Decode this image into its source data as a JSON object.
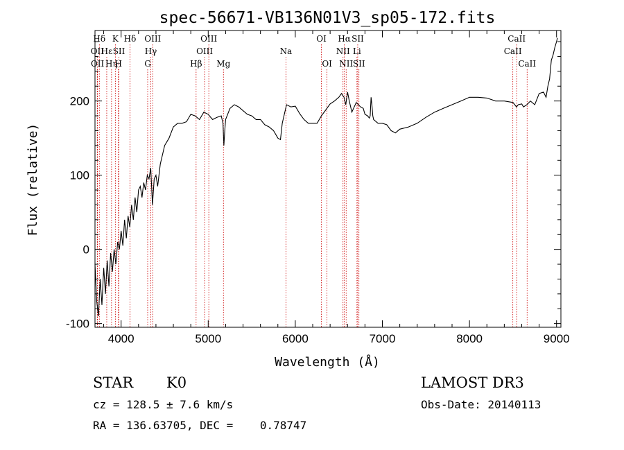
{
  "chart_data": {
    "type": "line",
    "title": "spec-56671-VB136N01V3_sp05-172.fits",
    "xlabel": "Wavelength (Å)",
    "ylabel": "Flux (relative)",
    "xlim": [
      3700,
      9050
    ],
    "ylim": [
      -105,
      295
    ],
    "xticks": [
      4000,
      5000,
      6000,
      7000,
      8000,
      9000
    ],
    "yticks": [
      -100,
      0,
      100,
      200
    ],
    "series": [
      {
        "name": "flux",
        "x": [
          3700,
          3720,
          3740,
          3760,
          3780,
          3800,
          3820,
          3840,
          3860,
          3880,
          3900,
          3920,
          3940,
          3960,
          3980,
          4000,
          4020,
          4040,
          4060,
          4080,
          4100,
          4120,
          4140,
          4160,
          4180,
          4200,
          4220,
          4240,
          4260,
          4280,
          4300,
          4320,
          4340,
          4360,
          4380,
          4400,
          4420,
          4450,
          4500,
          4550,
          4600,
          4650,
          4700,
          4750,
          4800,
          4850,
          4900,
          4950,
          5000,
          5050,
          5100,
          5150,
          5170,
          5180,
          5190,
          5200,
          5250,
          5300,
          5350,
          5400,
          5450,
          5500,
          5550,
          5600,
          5650,
          5700,
          5750,
          5800,
          5830,
          5850,
          5880,
          5900,
          5950,
          6000,
          6050,
          6100,
          6150,
          6200,
          6250,
          6300,
          6350,
          6400,
          6450,
          6500,
          6530,
          6560,
          6580,
          6600,
          6620,
          6650,
          6700,
          6750,
          6780,
          6800,
          6830,
          6850,
          6860,
          6870,
          6880,
          6890,
          6900,
          6950,
          7000,
          7050,
          7100,
          7150,
          7200,
          7300,
          7400,
          7500,
          7600,
          7700,
          7800,
          7900,
          8000,
          8100,
          8200,
          8300,
          8400,
          8500,
          8540,
          8560,
          8600,
          8620,
          8660,
          8700,
          8750,
          8800,
          8850,
          8880,
          8900,
          8920,
          8940,
          8960,
          8980,
          9000,
          9010
        ],
        "y": [
          -20,
          -70,
          -90,
          -40,
          -75,
          -25,
          -60,
          -15,
          -50,
          -5,
          -30,
          0,
          -20,
          10,
          0,
          25,
          5,
          40,
          15,
          45,
          30,
          60,
          40,
          70,
          50,
          80,
          85,
          70,
          90,
          80,
          100,
          95,
          110,
          60,
          95,
          100,
          85,
          115,
          140,
          150,
          165,
          170,
          170,
          172,
          182,
          180,
          175,
          185,
          182,
          175,
          178,
          180,
          170,
          140,
          160,
          175,
          190,
          195,
          192,
          187,
          182,
          180,
          175,
          175,
          168,
          165,
          160,
          150,
          148,
          170,
          185,
          195,
          192,
          193,
          183,
          175,
          170,
          170,
          170,
          180,
          188,
          196,
          200,
          205,
          210,
          205,
          195,
          212,
          200,
          185,
          198,
          192,
          190,
          182,
          180,
          177,
          180,
          205,
          195,
          180,
          175,
          170,
          170,
          168,
          160,
          157,
          162,
          165,
          170,
          178,
          185,
          190,
          195,
          200,
          205,
          205,
          204,
          200,
          200,
          198,
          192,
          195,
          196,
          192,
          195,
          200,
          195,
          210,
          212,
          205,
          220,
          230,
          255,
          262,
          272,
          280,
          285
        ],
        "color": "#000000"
      }
    ],
    "line_ids": [
      {
        "label": "Hδ",
        "x": 3750,
        "row": 0
      },
      {
        "label": "OII",
        "x": 3727,
        "row": 1
      },
      {
        "label": "OII",
        "x": 3729,
        "row": 2
      },
      {
        "label": "Hε",
        "x": 3835,
        "row": 1
      },
      {
        "label": "Hη",
        "x": 3890,
        "row": 2
      },
      {
        "label": "K",
        "x": 3934,
        "row": 0
      },
      {
        "label": "H",
        "x": 3969,
        "row": 2
      },
      {
        "label": "SII",
        "x": 3975,
        "row": 1
      },
      {
        "label": "Hδ",
        "x": 4102,
        "row": 0
      },
      {
        "label": "OIII",
        "x": 4363,
        "row": 0
      },
      {
        "label": "Hγ",
        "x": 4341,
        "row": 1
      },
      {
        "label": "G",
        "x": 4305,
        "row": 2
      },
      {
        "label": "OIII",
        "x": 4959,
        "row": 1
      },
      {
        "label": "OIII",
        "x": 5007,
        "row": 0
      },
      {
        "label": "Hβ",
        "x": 4861,
        "row": 2
      },
      {
        "label": "Mg",
        "x": 5175,
        "row": 2
      },
      {
        "label": "Na",
        "x": 5893,
        "row": 1
      },
      {
        "label": "OI",
        "x": 6300,
        "row": 0
      },
      {
        "label": "OI",
        "x": 6364,
        "row": 2
      },
      {
        "label": "Hα",
        "x": 6563,
        "row": 0
      },
      {
        "label": "NII",
        "x": 6548,
        "row": 1
      },
      {
        "label": "NII",
        "x": 6584,
        "row": 2
      },
      {
        "label": "SII",
        "x": 6717,
        "row": 0
      },
      {
        "label": "Li",
        "x": 6708,
        "row": 1
      },
      {
        "label": "SII",
        "x": 6731,
        "row": 2
      },
      {
        "label": "CaII",
        "x": 8542,
        "row": 0
      },
      {
        "label": "CaII",
        "x": 8498,
        "row": 1
      },
      {
        "label": "CaII",
        "x": 8662,
        "row": 2
      }
    ]
  },
  "info": {
    "class": "STAR",
    "subclass": "K0",
    "survey": "LAMOST DR3",
    "cz": "cz = 128.5 ± 7.6 km/s",
    "obsdate": "Obs-Date: 20140113",
    "radec": "RA = 136.63705, DEC =    0.78747"
  }
}
